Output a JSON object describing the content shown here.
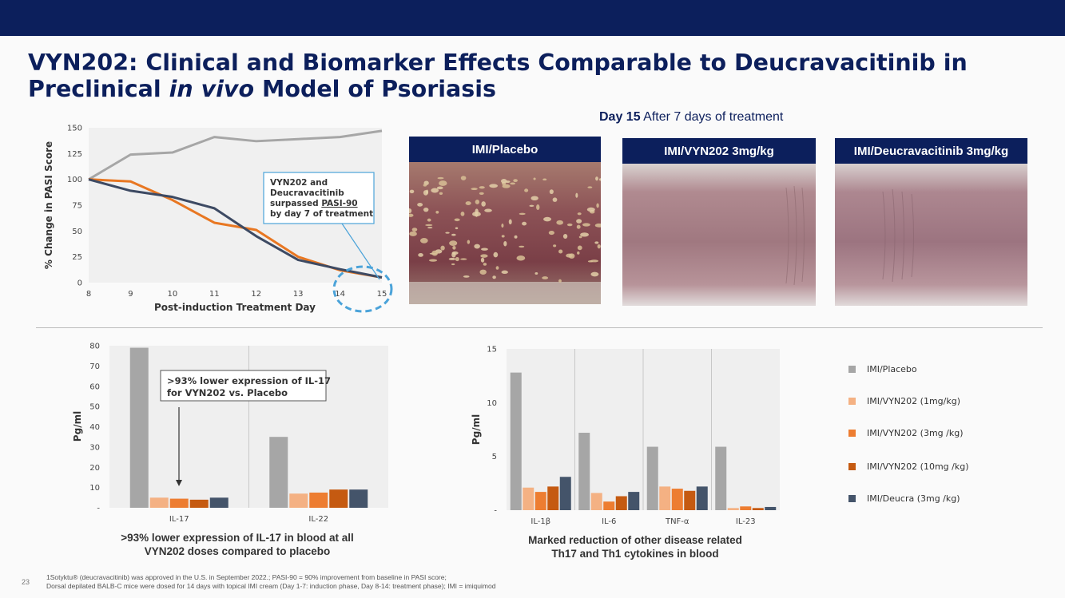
{
  "title": {
    "line1": "VYN202: Clinical and Biomarker Effects Comparable to Deucravacitinib in",
    "line2_prefix": "Preclinical ",
    "line2_italic": "in vivo",
    "line2_suffix": " Model of Psoriasis"
  },
  "day_heading": {
    "bold": "Day 15",
    "rest": " After 7 days of treatment"
  },
  "photos": [
    {
      "label": "IMI/Placebo"
    },
    {
      "label": "IMI/VYN202 3mg/kg"
    },
    {
      "label": "IMI/Deucravacitinib 3mg/kg"
    }
  ],
  "chart_data": [
    {
      "type": "line",
      "title": "",
      "xlabel": "Post-induction Treatment Day",
      "ylabel": "% Change in PASI Score",
      "x": [
        8,
        9,
        10,
        11,
        12,
        13,
        14,
        15
      ],
      "ylim": [
        0,
        150
      ],
      "yticks": [
        0,
        25,
        50,
        75,
        100,
        125,
        150
      ],
      "series": [
        {
          "name": "IMI/Placebo",
          "color": "#a6a6a6",
          "values": [
            100,
            124,
            126,
            141,
            137,
            139,
            141,
            147
          ]
        },
        {
          "name": "IMI/VYN202",
          "color": "#e87722",
          "values": [
            100,
            98,
            80,
            58,
            51,
            25,
            12,
            5
          ]
        },
        {
          "name": "IMI/Deucravacitinib",
          "color": "#3d4a63",
          "values": [
            100,
            89,
            83,
            72,
            45,
            22,
            13,
            5
          ]
        }
      ],
      "annotation": {
        "line1": "VYN202 and",
        "line2": "Deucravacitinib",
        "line3_prefix": "surpassed ",
        "line3_underlined": "PASI-90",
        "line4": "by day 7 of treatment"
      }
    },
    {
      "type": "bar",
      "ylabel": "Pg/ml",
      "categories": [
        "IL-17",
        "IL-22"
      ],
      "ylim": [
        0,
        80
      ],
      "ytick_labels": [
        "-",
        "10",
        "20",
        "30",
        "40",
        "50",
        "60",
        "70",
        "80"
      ],
      "series": [
        {
          "name": "IMI/Placebo",
          "values": [
            79,
            35
          ]
        },
        {
          "name": "IMI/VYN202 (1mg/kg)",
          "values": [
            5,
            7
          ]
        },
        {
          "name": "IMI/VYN202 (3mg /kg)",
          "values": [
            4.5,
            7.5
          ]
        },
        {
          "name": "IMI/VYN202 (10mg /kg)",
          "values": [
            4,
            9
          ]
        },
        {
          "name": "IMI/Deucra (3mg /kg)",
          "values": [
            5,
            9
          ]
        }
      ],
      "annotation": {
        "line1": ">93% lower expression of IL-17",
        "line2": "for VYN202 vs. Placebo"
      },
      "caption": {
        "line1": ">93% lower expression of IL-17 in blood at all",
        "line2": "VYN202 doses compared to placebo"
      }
    },
    {
      "type": "bar",
      "ylabel": "Pg/ml",
      "categories": [
        "IL-1β",
        "IL-6",
        "TNF-α",
        "IL-23"
      ],
      "ylim": [
        0,
        15
      ],
      "ytick_labels": [
        "-",
        "5",
        "10",
        "15"
      ],
      "series": [
        {
          "name": "IMI/Placebo",
          "values": [
            12.8,
            7.2,
            5.9,
            5.9
          ]
        },
        {
          "name": "IMI/VYN202 (1mg/kg)",
          "values": [
            2.1,
            1.6,
            2.2,
            0.2
          ]
        },
        {
          "name": "IMI/VYN202 (3mg /kg)",
          "values": [
            1.7,
            0.8,
            2.0,
            0.35
          ]
        },
        {
          "name": "IMI/VYN202 (10mg /kg)",
          "values": [
            2.2,
            1.3,
            1.8,
            0.2
          ]
        },
        {
          "name": "IMI/Deucra (3mg /kg)",
          "values": [
            3.1,
            1.7,
            2.2,
            0.3
          ]
        }
      ],
      "caption": {
        "line1": "Marked reduction of other disease related",
        "line2": "Th17 and Th1 cytokines in blood"
      }
    }
  ],
  "legend": [
    {
      "label": "IMI/Placebo",
      "color": "#a6a6a6"
    },
    {
      "label": "IMI/VYN202 (1mg/kg)",
      "color": "#f4b183"
    },
    {
      "label": "IMI/VYN202 (3mg /kg)",
      "color": "#ed7d31"
    },
    {
      "label": "IMI/VYN202 (10mg /kg)",
      "color": "#c55a11"
    },
    {
      "label": "IMI/Deucra (3mg /kg)",
      "color": "#44546a"
    }
  ],
  "footnote": {
    "line1": "1Sotyktu® (deucravacitinib) was approved in the U.S. in September 2022.; PASI-90 = 90% improvement from baseline in PASI score;",
    "line2": "Dorsal depilated BALB-C mice were dosed for 14 days with topical IMI cream (Day 1-7: induction phase, Day 8-14: treatment phase); IMI = imiquimod"
  },
  "page_number": "23"
}
